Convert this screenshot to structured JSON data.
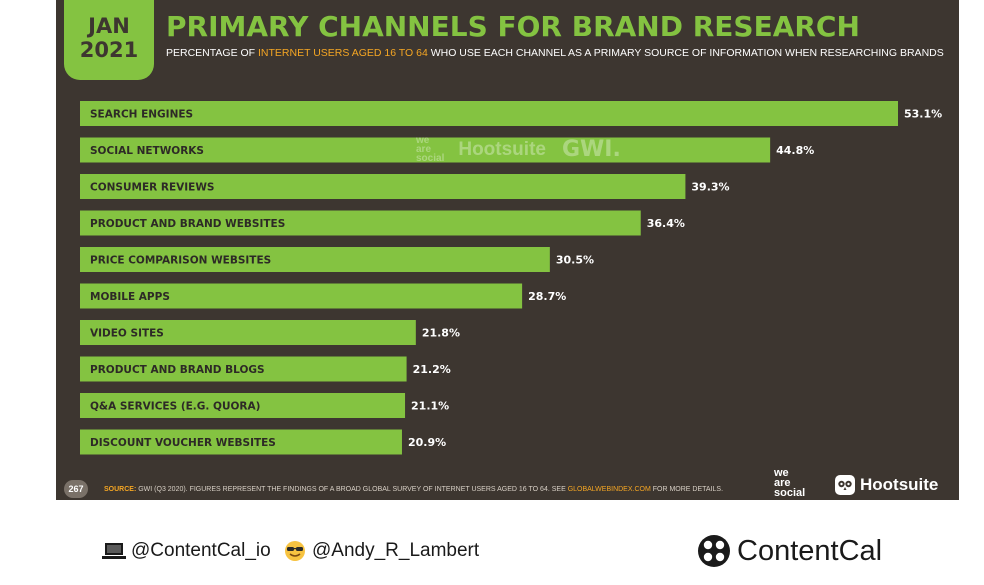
{
  "badge": {
    "month": "JAN",
    "year": "2021"
  },
  "title": "PRIMARY CHANNELS FOR BRAND RESEARCH",
  "subtitle": {
    "pre": "PERCENTAGE OF ",
    "highlight": "INTERNET USERS AGED 16 TO 64",
    "post": " WHO USE EACH CHANNEL AS A PRIMARY SOURCE OF INFORMATION WHEN RESEARCHING BRANDS"
  },
  "colors": {
    "bar": "#84c341",
    "background": "#3d3630",
    "accent": "#f5a623"
  },
  "chart_data": {
    "type": "bar",
    "orientation": "horizontal",
    "categories": [
      "SEARCH ENGINES",
      "SOCIAL NETWORKS",
      "CONSUMER REVIEWS",
      "PRODUCT AND BRAND WEBSITES",
      "PRICE COMPARISON WEBSITES",
      "MOBILE APPS",
      "VIDEO SITES",
      "PRODUCT AND BRAND BLOGS",
      "Q&A SERVICES (E.G. QUORA)",
      "DISCOUNT VOUCHER WEBSITES"
    ],
    "values": [
      53.1,
      44.8,
      39.3,
      36.4,
      30.5,
      28.7,
      21.8,
      21.2,
      21.1,
      20.9
    ],
    "value_labels": [
      "53.1%",
      "44.8%",
      "39.3%",
      "36.4%",
      "30.5%",
      "28.7%",
      "21.8%",
      "21.2%",
      "21.1%",
      "20.9%"
    ],
    "unit": "%",
    "legend": "none",
    "grid": false
  },
  "watermark": {
    "was": [
      "we",
      "are",
      "social"
    ],
    "hootsuite": "Hootsuite",
    "gwi": "GWI."
  },
  "footer_bar": {
    "page": "267",
    "source_key": "SOURCE:",
    "source_text": " GWI (Q3 2020). FIGURES REPRESENT THE FINDINGS OF A BROAD GLOBAL SURVEY OF INTERNET USERS AGED 16 TO 64. SEE ",
    "source_link": "GLOBALWEBINDEX.COM",
    "source_end": " FOR MORE DETAILS.",
    "was_logo": [
      "we",
      "are",
      "social"
    ],
    "hootsuite_logo": "Hootsuite"
  },
  "footer": {
    "handle_contentcal": "@ContentCal_io",
    "handle_andy": "@Andy_R_Lambert",
    "brand": "ContentCal",
    "icons": [
      "laptop-icon",
      "sunglasses-face-icon",
      "contentcal-logo-icon"
    ]
  }
}
